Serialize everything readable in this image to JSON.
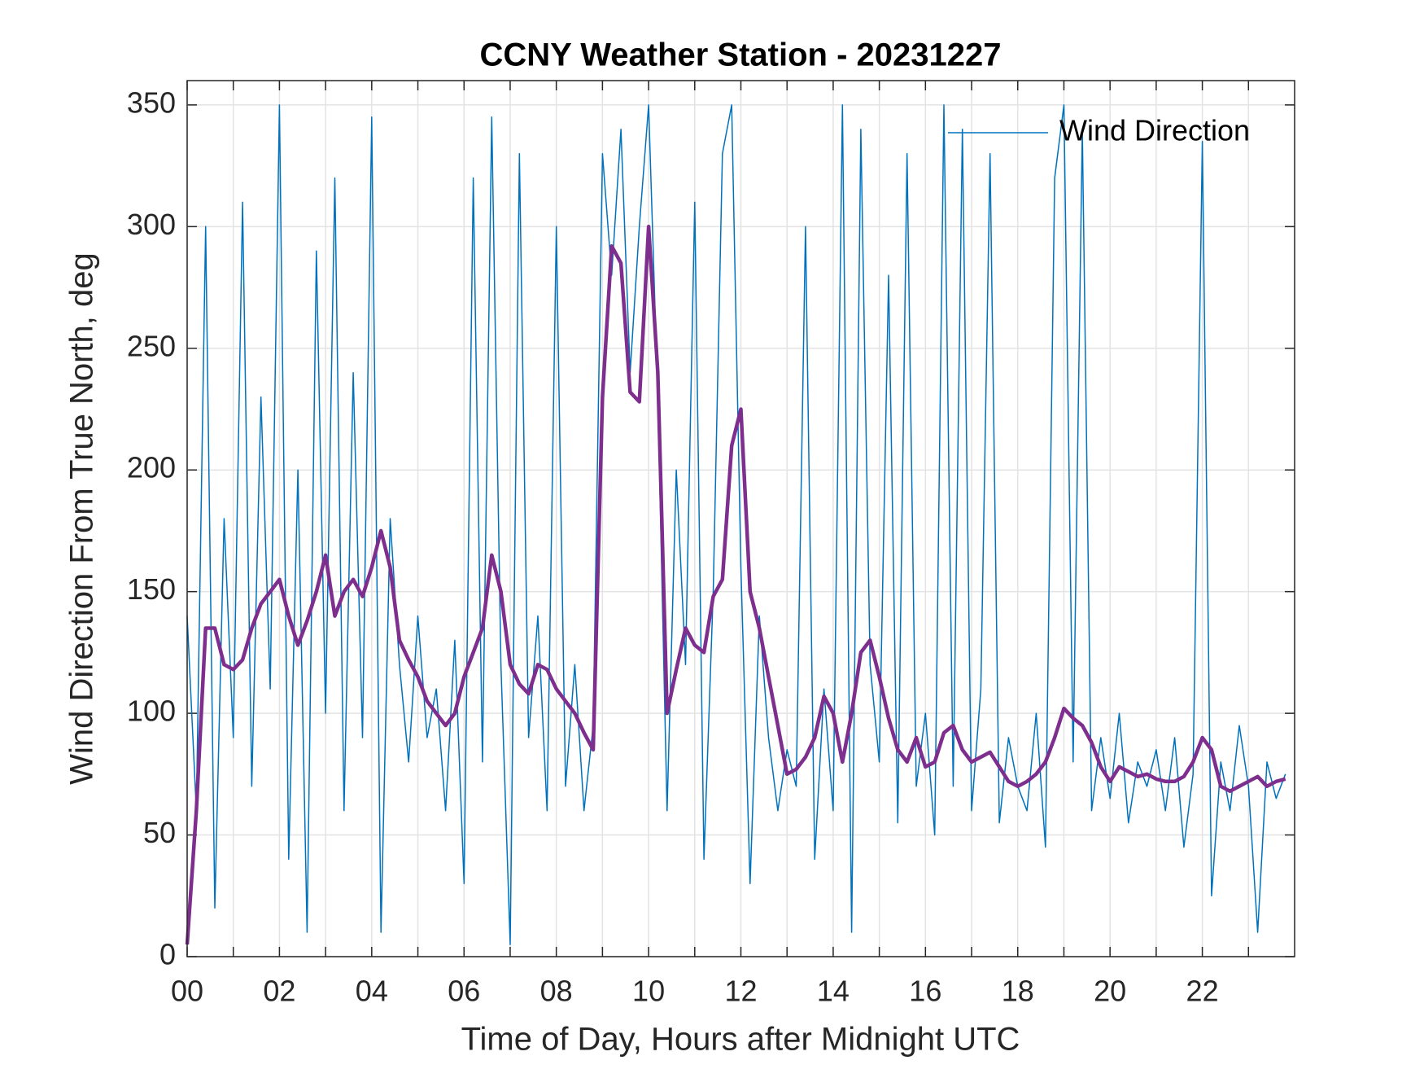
{
  "chart_data": {
    "type": "line",
    "title": "CCNY Weather Station - 20231227",
    "xlabel": "Time of Day, Hours after Midnight UTC",
    "ylabel": "Wind Direction From True North, deg",
    "xlim": [
      0,
      24
    ],
    "ylim": [
      0,
      360
    ],
    "xticks": [
      {
        "value": 0,
        "label": "00"
      },
      {
        "value": 2,
        "label": "02"
      },
      {
        "value": 4,
        "label": "04"
      },
      {
        "value": 6,
        "label": "06"
      },
      {
        "value": 8,
        "label": "08"
      },
      {
        "value": 10,
        "label": "10"
      },
      {
        "value": 12,
        "label": "12"
      },
      {
        "value": 14,
        "label": "14"
      },
      {
        "value": 16,
        "label": "16"
      },
      {
        "value": 18,
        "label": "18"
      },
      {
        "value": 20,
        "label": "20"
      },
      {
        "value": 22,
        "label": "22"
      }
    ],
    "xminorticks": [
      1,
      3,
      5,
      7,
      9,
      11,
      13,
      15,
      17,
      19,
      21,
      23
    ],
    "yticks": [
      0,
      50,
      100,
      150,
      200,
      250,
      300,
      350
    ],
    "grid": true,
    "legend": "upper right",
    "x": [
      0,
      0.2,
      0.4,
      0.6,
      0.8,
      1,
      1.2,
      1.4,
      1.6,
      1.8,
      2,
      2.2,
      2.4,
      2.6,
      2.8,
      3,
      3.2,
      3.4,
      3.6,
      3.8,
      4,
      4.2,
      4.4,
      4.6,
      4.8,
      5,
      5.2,
      5.4,
      5.6,
      5.8,
      6,
      6.2,
      6.4,
      6.6,
      6.8,
      7,
      7.2,
      7.4,
      7.6,
      7.8,
      8,
      8.2,
      8.4,
      8.6,
      8.8,
      9,
      9.2,
      9.4,
      9.6,
      9.8,
      10,
      10.2,
      10.4,
      10.6,
      10.8,
      11,
      11.2,
      11.4,
      11.6,
      11.8,
      12,
      12.2,
      12.4,
      12.6,
      12.8,
      13,
      13.2,
      13.4,
      13.6,
      13.8,
      14,
      14.2,
      14.4,
      14.6,
      14.8,
      15,
      15.2,
      15.4,
      15.6,
      15.8,
      16,
      16.2,
      16.4,
      16.6,
      16.8,
      17,
      17.2,
      17.4,
      17.6,
      17.8,
      18,
      18.2,
      18.4,
      18.6,
      18.8,
      19,
      19.2,
      19.4,
      19.6,
      19.8,
      20,
      20.2,
      20.4,
      20.6,
      20.8,
      21,
      21.2,
      21.4,
      21.6,
      21.8,
      22,
      22.2,
      22.4,
      22.6,
      22.8,
      23,
      23.2,
      23.4,
      23.6,
      23.8
    ],
    "series": [
      {
        "name": "Wind Direction",
        "color": "#0072bd",
        "width": 1.5,
        "values": [
          140,
          60,
          300,
          20,
          180,
          90,
          310,
          70,
          230,
          110,
          350,
          40,
          200,
          10,
          290,
          100,
          320,
          60,
          240,
          90,
          345,
          10,
          180,
          120,
          80,
          140,
          90,
          110,
          60,
          130,
          30,
          320,
          80,
          345,
          120,
          5,
          330,
          90,
          140,
          60,
          300,
          70,
          120,
          60,
          95,
          330,
          280,
          340,
          240,
          300,
          350,
          230,
          60,
          200,
          120,
          310,
          40,
          150,
          330,
          350,
          160,
          30,
          140,
          90,
          60,
          85,
          70,
          300,
          40,
          110,
          60,
          350,
          10,
          340,
          120,
          80,
          280,
          55,
          330,
          70,
          100,
          50,
          350,
          70,
          340,
          60,
          110,
          330,
          55,
          90,
          70,
          60,
          100,
          45,
          320,
          350,
          80,
          340,
          60,
          90,
          65,
          100,
          55,
          80,
          70,
          85,
          60,
          90,
          45,
          75,
          335,
          25,
          80,
          60,
          95,
          70,
          10,
          80,
          65,
          75
        ]
      },
      {
        "color": "#7e2f8e",
        "width": 4.5,
        "values": [
          5,
          60,
          135,
          135,
          120,
          118,
          122,
          135,
          145,
          150,
          155,
          140,
          128,
          138,
          150,
          165,
          140,
          150,
          155,
          148,
          160,
          175,
          160,
          130,
          122,
          115,
          105,
          100,
          95,
          100,
          115,
          125,
          135,
          165,
          150,
          120,
          112,
          108,
          120,
          118,
          110,
          105,
          100,
          92,
          85,
          230,
          292,
          285,
          232,
          228,
          300,
          240,
          100,
          118,
          135,
          128,
          125,
          148,
          155,
          210,
          225,
          150,
          135,
          115,
          95,
          75,
          77,
          82,
          90,
          107,
          100,
          80,
          100,
          125,
          130,
          115,
          98,
          85,
          80,
          90,
          78,
          80,
          92,
          95,
          85,
          80,
          82,
          84,
          78,
          72,
          70,
          72,
          75,
          80,
          90,
          102,
          98,
          95,
          88,
          78,
          72,
          78,
          76,
          74,
          75,
          73,
          72,
          72,
          74,
          80,
          90,
          85,
          70,
          68,
          70,
          72,
          74,
          70,
          72,
          73
        ]
      }
    ]
  }
}
